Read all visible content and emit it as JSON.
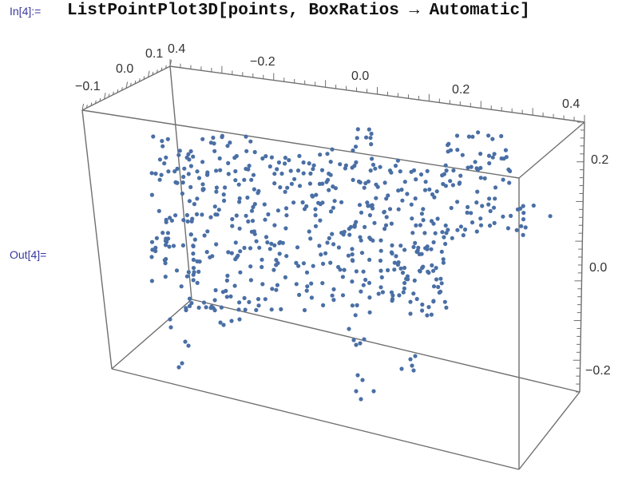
{
  "cell": {
    "in_label": "In[4]:=",
    "input_code": "ListPointPlot3D[points, BoxRatios → Automatic]",
    "out_label": "Out[4]="
  },
  "colors": {
    "point": "#4a6fa5",
    "box": "#7a7a7a",
    "label": "#3a3aa0"
  },
  "chart_data": {
    "type": "scatter",
    "title": "",
    "axes": {
      "x_ticks": [
        "−0.2",
        "0.0",
        "0.2",
        "0.4"
      ],
      "y_ticks": [
        "−0.1",
        "0.0",
        "0.1",
        "0.4"
      ],
      "z_ticks": [
        "0.2",
        "0.0",
        "−0.2"
      ]
    },
    "grid": false
  }
}
